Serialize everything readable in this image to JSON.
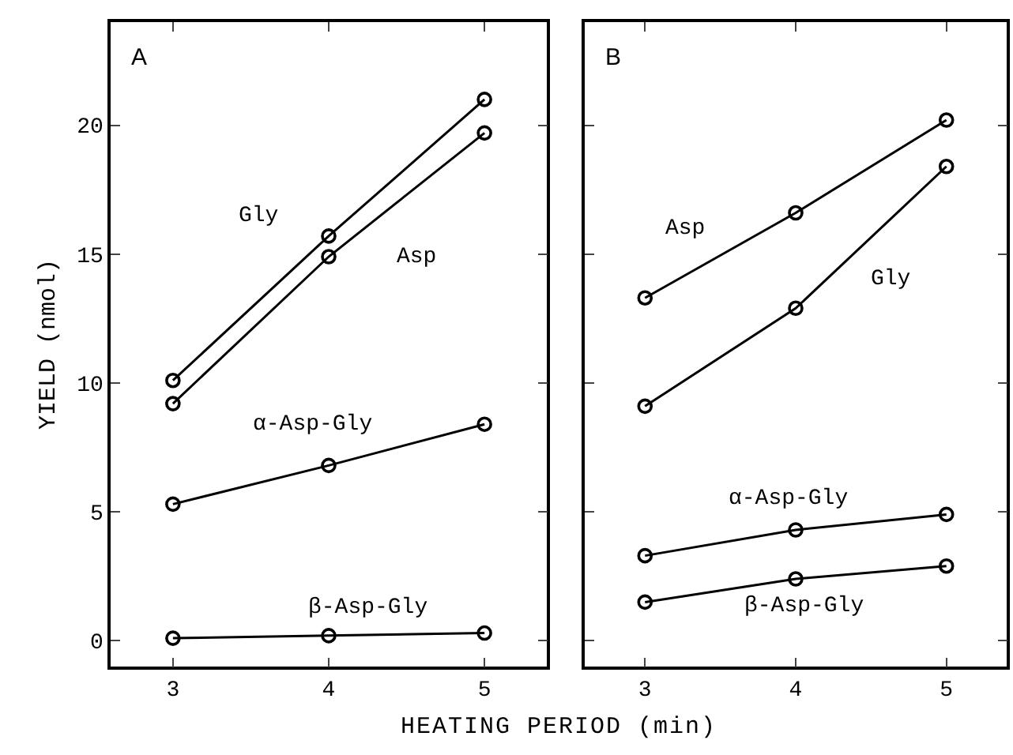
{
  "chart_data": [
    {
      "type": "line",
      "title": "A",
      "ylabel": "YIELD (nmol)",
      "xlabel": "HEATING PERIOD (min)",
      "x": [
        3,
        4,
        5
      ],
      "xlim": [
        2.6,
        5.4
      ],
      "xticks": [
        3,
        4,
        5
      ],
      "ylim": [
        -1,
        24
      ],
      "yticks": [
        0,
        5,
        10,
        15,
        20
      ],
      "marker": "circle",
      "line_style": "solid",
      "grid": false,
      "legend": false,
      "series": [
        {
          "name": "Gly",
          "color": "#000000",
          "values": [
            10.1,
            15.7,
            21.0
          ]
        },
        {
          "name": "Asp",
          "color": "#000000",
          "values": [
            9.2,
            14.9,
            19.7
          ]
        },
        {
          "name": "α-Asp-Gly",
          "color": "#000000",
          "values": [
            5.3,
            6.8,
            8.4
          ]
        },
        {
          "name": "β-Asp-Gly",
          "color": "#000000",
          "values": [
            0.1,
            0.2,
            0.3
          ]
        }
      ]
    },
    {
      "type": "line",
      "title": "B",
      "x": [
        3,
        4,
        5
      ],
      "xlim": [
        2.6,
        5.4
      ],
      "xticks": [
        3,
        4,
        5
      ],
      "ylim": [
        -1,
        24
      ],
      "yticks": [
        0,
        5,
        10,
        15,
        20
      ],
      "tick_labels": "x",
      "marker": "circle",
      "line_style": "solid",
      "grid": false,
      "legend": false,
      "series": [
        {
          "name": "Asp",
          "color": "#000000",
          "values": [
            13.3,
            16.6,
            20.2
          ]
        },
        {
          "name": "Gly",
          "color": "#000000",
          "values": [
            9.1,
            12.9,
            18.4
          ]
        },
        {
          "name": "α-Asp-Gly",
          "color": "#000000",
          "values": [
            3.3,
            4.3,
            4.9
          ]
        },
        {
          "name": "β-Asp-Gly",
          "color": "#000000",
          "values": [
            1.5,
            2.4,
            2.9
          ]
        }
      ]
    }
  ]
}
